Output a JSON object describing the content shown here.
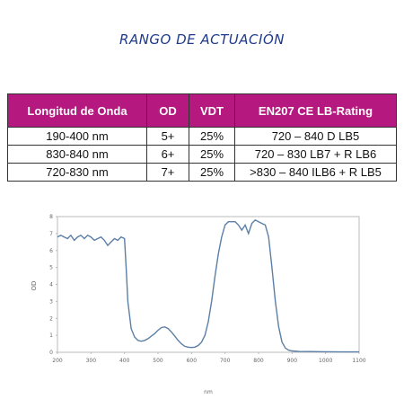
{
  "title": "RANGO DE ACTUACIÓN",
  "table": {
    "headers": [
      "Longitud de Onda",
      "OD",
      "VDT",
      "EN207 CE LB-Rating"
    ],
    "rows": [
      [
        "190-400 nm",
        "5+",
        "25%",
        "720 – 840 D LB5"
      ],
      [
        "830-840 nm",
        "6+",
        "25%",
        "720 – 830 LB7 + R LB6"
      ],
      [
        "720-830 nm",
        "7+",
        "25%",
        ">830 – 840 ILB6 + R LB5"
      ]
    ]
  },
  "colors": {
    "header_bg": "#b5187f",
    "title": "#1f3a8a",
    "line": "#5b7fa6"
  },
  "chart_data": {
    "type": "line",
    "xlabel": "nm",
    "ylabel": "OD",
    "xlim": [
      200,
      1100
    ],
    "ylim": [
      0,
      8
    ],
    "x_ticks": [
      200,
      300,
      400,
      500,
      600,
      700,
      800,
      900,
      1000,
      1100
    ],
    "y_ticks": [
      0,
      1,
      2,
      3,
      4,
      5,
      6,
      7,
      8
    ],
    "grid": false,
    "series": [
      {
        "x": [
          200,
          210,
          220,
          230,
          240,
          250,
          260,
          270,
          280,
          290,
          300,
          310,
          320,
          330,
          340,
          350,
          360,
          370,
          380,
          390,
          400,
          405,
          410,
          420,
          430,
          440,
          450,
          460,
          470,
          480,
          490,
          500,
          510,
          520,
          530,
          540,
          550,
          560,
          570,
          580,
          590,
          600,
          610,
          620,
          630,
          640,
          650,
          660,
          670,
          680,
          690,
          700,
          710,
          720,
          730,
          740,
          750,
          760,
          770,
          780,
          790,
          800,
          810,
          820,
          830,
          840,
          850,
          860,
          870,
          880,
          890,
          900,
          920,
          950,
          1000,
          1050,
          1100
        ],
        "y": [
          6.8,
          6.9,
          6.8,
          6.7,
          6.9,
          6.6,
          6.8,
          6.9,
          6.7,
          6.9,
          6.8,
          6.6,
          6.7,
          6.8,
          6.6,
          6.3,
          6.5,
          6.7,
          6.6,
          6.8,
          6.7,
          5.0,
          3.0,
          1.4,
          0.9,
          0.7,
          0.65,
          0.7,
          0.8,
          0.95,
          1.1,
          1.3,
          1.45,
          1.5,
          1.4,
          1.2,
          0.95,
          0.7,
          0.5,
          0.35,
          0.3,
          0.28,
          0.3,
          0.4,
          0.6,
          1.0,
          1.8,
          3.0,
          4.5,
          5.8,
          6.8,
          7.5,
          7.7,
          7.7,
          7.7,
          7.5,
          7.2,
          7.5,
          7.0,
          7.6,
          7.8,
          7.7,
          7.6,
          7.5,
          6.8,
          5.0,
          3.0,
          1.5,
          0.6,
          0.25,
          0.12,
          0.08,
          0.05,
          0.04,
          0.03,
          0.02,
          0.02
        ]
      }
    ]
  }
}
